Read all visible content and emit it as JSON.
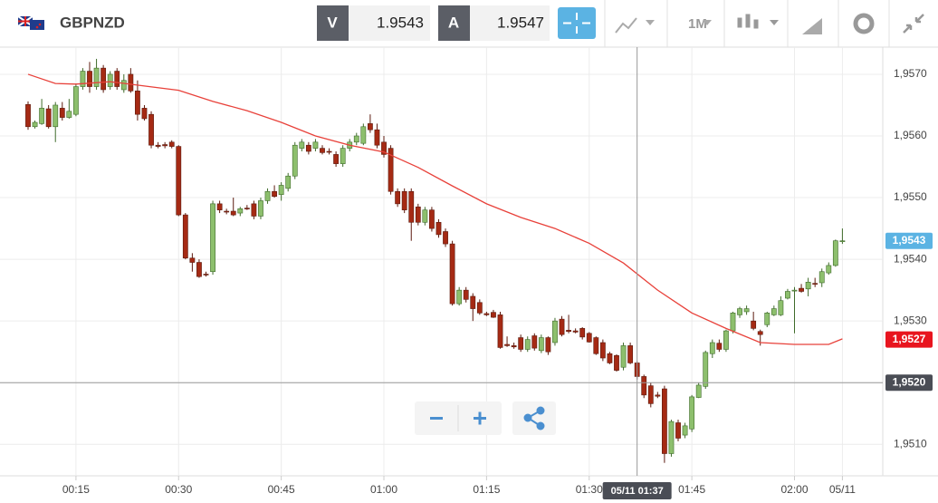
{
  "header": {
    "symbol": "GBPNZD",
    "bid": {
      "label": "V",
      "value": "1.9543"
    },
    "ask": {
      "label": "A",
      "value": "1.9547"
    },
    "timeframe": "1M"
  },
  "chart_data": {
    "type": "candlestick",
    "x": [
      8,
      9,
      10,
      11,
      12,
      13,
      14,
      15,
      16,
      17,
      18,
      19,
      20,
      21,
      22,
      23,
      24,
      25,
      26,
      27,
      28,
      29,
      30,
      31,
      32,
      33,
      34,
      35,
      36,
      37,
      38,
      39,
      40,
      41,
      42,
      43,
      44,
      45,
      46,
      47,
      48,
      49,
      50,
      51,
      52,
      53,
      54,
      55,
      56,
      57,
      58,
      59,
      60,
      61,
      62,
      63,
      64,
      65,
      66,
      67,
      68,
      69,
      70,
      71,
      72,
      73,
      74,
      75,
      76,
      77,
      78,
      79,
      80,
      81,
      82,
      83,
      84,
      85,
      86,
      87,
      88,
      89,
      90,
      91,
      92,
      93,
      94,
      95,
      96,
      97,
      98,
      99,
      100,
      101,
      102,
      103,
      104,
      105,
      106,
      107,
      108,
      109,
      110,
      111,
      112,
      113,
      114,
      115,
      116,
      117,
      118,
      119,
      120,
      121,
      122,
      123,
      124,
      125,
      126,
      127
    ],
    "open": [
      1.95651,
      1.95615,
      1.9562,
      1.95644,
      1.95615,
      1.95645,
      1.9563,
      1.95635,
      1.9568,
      1.95705,
      1.9568,
      1.9571,
      1.9568,
      1.95705,
      1.95675,
      1.957,
      1.95673,
      1.95645,
      1.95635,
      1.95585,
      1.95586,
      1.9559,
      1.95583,
      1.95472,
      1.95402,
      1.95395,
      1.95376,
      1.9538,
      1.9549,
      1.95478,
      1.95478,
      1.95475,
      1.95483,
      1.9549,
      1.9547,
      1.95495,
      1.9551,
      1.95505,
      1.95515,
      1.95535,
      1.9558,
      1.95585,
      1.9558,
      1.9558,
      1.95575,
      1.9557,
      1.95555,
      1.9558,
      1.9559,
      1.95588,
      1.9562,
      1.9561,
      1.9559,
      1.9558,
      1.9551,
      1.9551,
      1.9551,
      1.95485,
      1.9546,
      1.9548,
      1.9546,
      1.95445,
      1.95425,
      1.95328,
      1.9535,
      1.9534,
      1.9533,
      1.95312,
      1.95314,
      1.9531,
      1.95262,
      1.9526,
      1.95273,
      1.95254,
      1.95276,
      1.95252,
      1.95273,
      1.95265,
      1.95303,
      1.95285,
      1.95284,
      1.95288,
      1.9528,
      1.95273,
      1.95265,
      1.95247,
      1.95244,
      1.95225,
      1.9526,
      1.95232,
      1.9521,
      1.95195,
      1.9518,
      1.9519,
      1.95085,
      1.95135,
      1.95115,
      1.95125,
      1.95176,
      1.95194,
      1.95247,
      1.95264,
      1.95254,
      1.95284,
      1.9531,
      1.95315,
      1.953,
      1.95283,
      1.95294,
      1.9531,
      1.9531,
      1.95337,
      1.95349,
      1.95353,
      1.95352,
      1.95361,
      1.95362,
      1.95378,
      1.9539,
      1.9543
    ],
    "high": [
      1.95656,
      1.95625,
      1.9566,
      1.9565,
      1.95655,
      1.95655,
      1.9566,
      1.95685,
      1.9571,
      1.9572,
      1.95725,
      1.95715,
      1.95705,
      1.9571,
      1.957,
      1.9571,
      1.9569,
      1.9565,
      1.9564,
      1.9559,
      1.9559,
      1.95593,
      1.95585,
      1.95475,
      1.9541,
      1.954,
      1.9538,
      1.95495,
      1.95495,
      1.95482,
      1.955,
      1.95485,
      1.95488,
      1.95495,
      1.955,
      1.95515,
      1.9552,
      1.95525,
      1.9554,
      1.9559,
      1.95595,
      1.9559,
      1.95595,
      1.95585,
      1.9558,
      1.95575,
      1.95585,
      1.95595,
      1.95605,
      1.9562,
      1.95635,
      1.9562,
      1.956,
      1.95585,
      1.95515,
      1.95515,
      1.95515,
      1.9549,
      1.95485,
      1.95485,
      1.95465,
      1.9545,
      1.9543,
      1.95355,
      1.95355,
      1.95345,
      1.95335,
      1.95315,
      1.95318,
      1.95315,
      1.95275,
      1.95265,
      1.95278,
      1.95275,
      1.9528,
      1.95278,
      1.95275,
      1.95305,
      1.95308,
      1.9531,
      1.95288,
      1.9529,
      1.95282,
      1.95275,
      1.9527,
      1.9525,
      1.95246,
      1.95265,
      1.95265,
      1.95235,
      1.95213,
      1.952,
      1.95185,
      1.95195,
      1.9514,
      1.9514,
      1.95135,
      1.9518,
      1.952,
      1.95252,
      1.9527,
      1.9527,
      1.95286,
      1.95315,
      1.95323,
      1.95325,
      1.95315,
      1.95286,
      1.95315,
      1.95325,
      1.9534,
      1.95352,
      1.95355,
      1.9536,
      1.9537,
      1.9537,
      1.95385,
      1.95395,
      1.95432,
      1.9545
    ],
    "low": [
      1.9561,
      1.95612,
      1.95618,
      1.95612,
      1.9559,
      1.95625,
      1.95628,
      1.95632,
      1.95675,
      1.9567,
      1.95675,
      1.9567,
      1.95675,
      1.95675,
      1.9567,
      1.9567,
      1.95625,
      1.95625,
      1.9558,
      1.9558,
      1.9558,
      1.9558,
      1.9547,
      1.954,
      1.9538,
      1.9537,
      1.95372,
      1.95375,
      1.95475,
      1.95473,
      1.9547,
      1.9547,
      1.9548,
      1.95465,
      1.95465,
      1.9549,
      1.955,
      1.95495,
      1.9551,
      1.9553,
      1.95575,
      1.9557,
      1.95575,
      1.9557,
      1.9557,
      1.9555,
      1.9555,
      1.95575,
      1.95585,
      1.95585,
      1.95605,
      1.9558,
      1.95565,
      1.95505,
      1.95485,
      1.95475,
      1.9543,
      1.95455,
      1.95455,
      1.95445,
      1.95435,
      1.9542,
      1.95325,
      1.95325,
      1.9533,
      1.953,
      1.9531,
      1.95308,
      1.95305,
      1.95255,
      1.95258,
      1.95255,
      1.9525,
      1.9525,
      1.95252,
      1.95248,
      1.95245,
      1.9526,
      1.95275,
      1.9528,
      1.9528,
      1.9527,
      1.95265,
      1.95245,
      1.95235,
      1.9523,
      1.95218,
      1.9522,
      1.9523,
      1.95205,
      1.95175,
      1.9516,
      1.95175,
      1.9507,
      1.9508,
      1.95105,
      1.9511,
      1.9512,
      1.95175,
      1.9519,
      1.9524,
      1.9525,
      1.9525,
      1.9528,
      1.95305,
      1.9531,
      1.95285,
      1.9526,
      1.9529,
      1.95308,
      1.95308,
      1.95335,
      1.9528,
      1.95346,
      1.9534,
      1.95355,
      1.95355,
      1.95375,
      1.95388,
      1.95425
    ],
    "close": [
      1.95615,
      1.95622,
      1.95645,
      1.95615,
      1.9565,
      1.9563,
      1.9564,
      1.9568,
      1.95705,
      1.9568,
      1.9571,
      1.95675,
      1.957,
      1.9568,
      1.9569,
      1.95673,
      1.95635,
      1.95628,
      1.95585,
      1.95583,
      1.95584,
      1.95583,
      1.95472,
      1.95402,
      1.95395,
      1.95372,
      1.95375,
      1.9549,
      1.9548,
      1.95477,
      1.95472,
      1.95482,
      1.95482,
      1.9547,
      1.95495,
      1.9551,
      1.95502,
      1.9552,
      1.95535,
      1.95585,
      1.9559,
      1.95575,
      1.9559,
      1.95573,
      1.95574,
      1.95555,
      1.9558,
      1.9559,
      1.956,
      1.95615,
      1.9561,
      1.95585,
      1.9557,
      1.9551,
      1.9549,
      1.9548,
      1.9546,
      1.9546,
      1.9548,
      1.9545,
      1.9544,
      1.95425,
      1.95328,
      1.9535,
      1.95335,
      1.9532,
      1.95313,
      1.9531,
      1.95306,
      1.95257,
      1.9526,
      1.95258,
      1.95254,
      1.9527,
      1.95256,
      1.95273,
      1.9525,
      1.953,
      1.95278,
      1.95283,
      1.95282,
      1.95274,
      1.95266,
      1.95247,
      1.9524,
      1.95232,
      1.9522,
      1.9526,
      1.95232,
      1.9521,
      1.9518,
      1.95166,
      1.95178,
      1.95085,
      1.95137,
      1.9511,
      1.9513,
      1.95177,
      1.95196,
      1.95249,
      1.95265,
      1.95254,
      1.95284,
      1.95313,
      1.9532,
      1.9532,
      1.95288,
      1.95278,
      1.95313,
      1.9532,
      1.95333,
      1.95348,
      1.9535,
      1.95348,
      1.95363,
      1.9536,
      1.9538,
      1.9539,
      1.9543,
      1.9543
    ],
    "up_color": "#8dbf6d",
    "down_color": "#a52a14",
    "moving_average": {
      "color": "#e8413a",
      "x": [
        8,
        12,
        15,
        20,
        25,
        30,
        35,
        40,
        45,
        50,
        55,
        60,
        65,
        70,
        75,
        80,
        85,
        90,
        95,
        100,
        105,
        110,
        115,
        120,
        125,
        127
      ],
      "values": [
        1.957,
        1.95685,
        1.95684,
        1.95688,
        1.95681,
        1.95674,
        1.95656,
        1.95641,
        1.95622,
        1.956,
        1.95585,
        1.95574,
        1.95549,
        1.95519,
        1.9549,
        1.95468,
        1.9545,
        1.95426,
        1.95394,
        1.9535,
        1.95313,
        1.95288,
        1.95265,
        1.95262,
        1.95262,
        1.95271
      ]
    },
    "xlim": [
      3.9,
      132.9
    ],
    "ylim": [
      1.95049,
      1.95744
    ],
    "xticks": [
      {
        "value": 15,
        "label": "00:15"
      },
      {
        "value": 30,
        "label": "00:30"
      },
      {
        "value": 45,
        "label": "00:45"
      },
      {
        "value": 60,
        "label": "01:00"
      },
      {
        "value": 75,
        "label": "01:15"
      },
      {
        "value": 90,
        "label": "01:30"
      },
      {
        "value": 105,
        "label": "01:45"
      },
      {
        "value": 120,
        "label": "02:00"
      },
      {
        "value": 127,
        "label": "05/11"
      }
    ],
    "yticks": [
      {
        "value": 1.951,
        "label": "1,9510"
      },
      {
        "value": 1.952,
        "label": "1,9520"
      },
      {
        "value": 1.953,
        "label": "1,9530"
      },
      {
        "value": 1.954,
        "label": "1,9540"
      },
      {
        "value": 1.955,
        "label": "1,9550"
      },
      {
        "value": 1.956,
        "label": "1,9560"
      },
      {
        "value": 1.957,
        "label": "1,9570"
      }
    ],
    "grid": true,
    "crosshair": {
      "x": {
        "value": 97,
        "label": "05/11 01:37"
      },
      "y": {
        "value": 1.952,
        "label": "1,9520"
      }
    },
    "price_markers": [
      {
        "value": 1.9543,
        "label": "1,9543",
        "color": "#5bb3e3"
      },
      {
        "value": 1.9527,
        "label": "1,9527",
        "color": "#e8141e"
      }
    ]
  }
}
